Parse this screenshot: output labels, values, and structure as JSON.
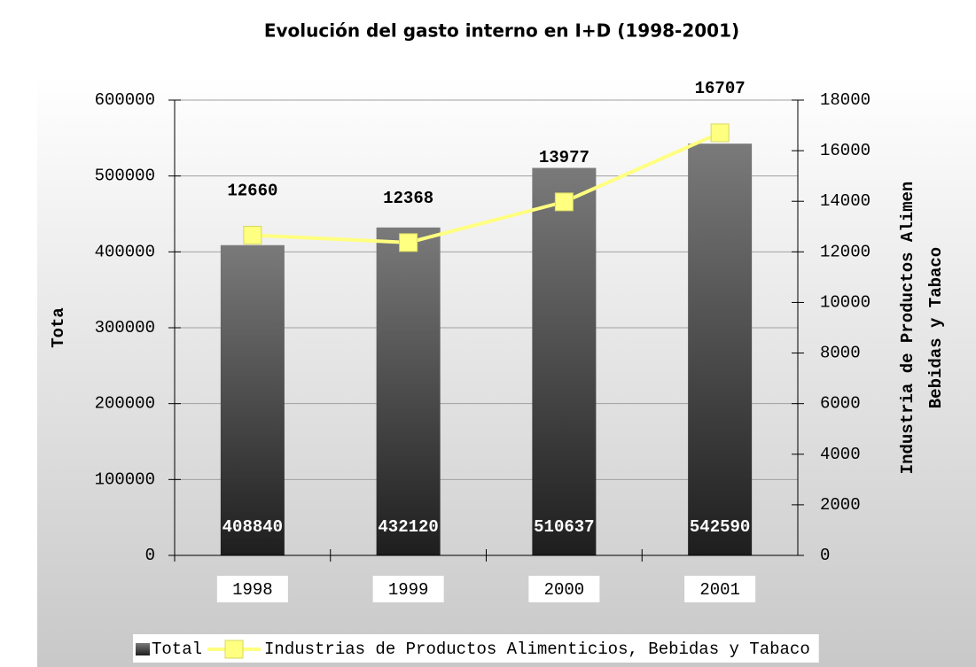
{
  "chart_data": {
    "type": "bar",
    "title": "Evolución del gasto interno en I+D (1998-2001)",
    "ylabel": "Tota",
    "y2label": [
      "Industria de Productos Alimen",
      "Bebidas y Tabaco"
    ],
    "categories": [
      "1998",
      "1999",
      "2000",
      "2001"
    ],
    "series": [
      {
        "name": "Total",
        "type": "bar",
        "color": "#555555",
        "values": [
          408840,
          432120,
          510637,
          542590
        ]
      },
      {
        "name": "Industrias de Productos Alimenticios, Bebidas y Tabaco",
        "type": "line",
        "axis": "y2",
        "color": "#ffff80",
        "values": [
          12660,
          12368,
          13977,
          16707
        ]
      }
    ],
    "ylim": [
      0,
      600000
    ],
    "yticks": [
      0,
      100000,
      200000,
      300000,
      400000,
      500000,
      600000
    ],
    "y2lim": [
      0,
      18000
    ],
    "y2ticks": [
      0,
      2000,
      4000,
      6000,
      8000,
      10000,
      12000,
      14000,
      16000,
      18000
    ],
    "grid": true,
    "legend": "bottom"
  }
}
